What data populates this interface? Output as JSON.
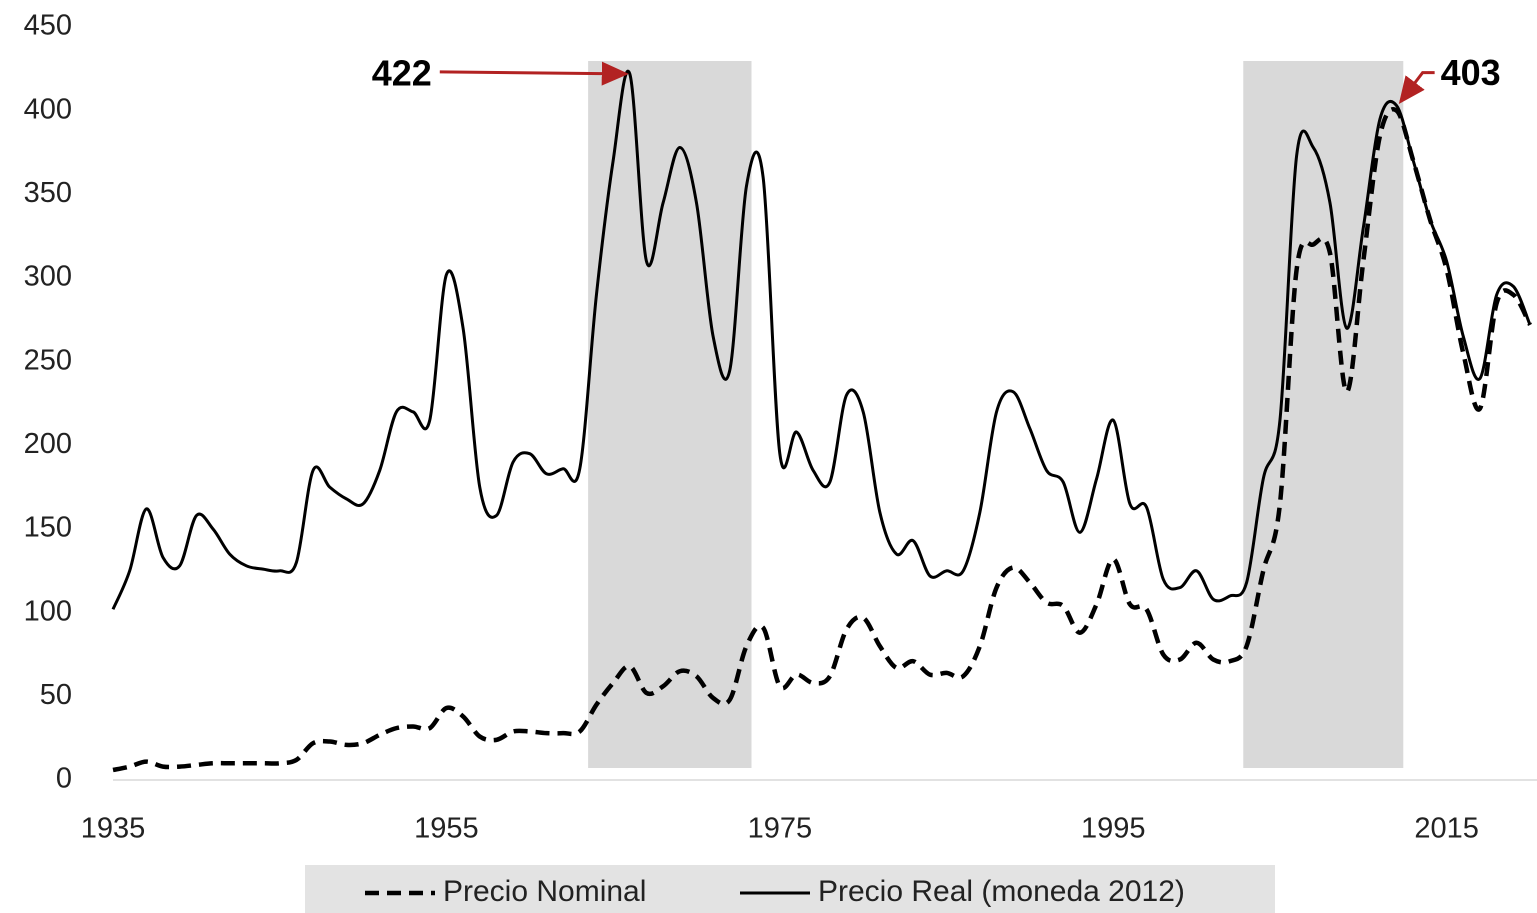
{
  "chart_data": {
    "type": "line",
    "x": [
      1935,
      1936,
      1937,
      1938,
      1939,
      1940,
      1941,
      1942,
      1943,
      1944,
      1945,
      1946,
      1947,
      1948,
      1949,
      1950,
      1951,
      1952,
      1953,
      1954,
      1955,
      1956,
      1957,
      1958,
      1959,
      1960,
      1961,
      1962,
      1963,
      1964,
      1965,
      1966,
      1967,
      1968,
      1969,
      1970,
      1971,
      1972,
      1973,
      1974,
      1975,
      1976,
      1977,
      1978,
      1979,
      1980,
      1981,
      1982,
      1983,
      1984,
      1985,
      1986,
      1987,
      1988,
      1989,
      1990,
      1991,
      1992,
      1993,
      1994,
      1995,
      1996,
      1997,
      1998,
      1999,
      2000,
      2001,
      2002,
      2003,
      2004,
      2005,
      2006,
      2007,
      2008,
      2009,
      2010,
      2011,
      2012,
      2013,
      2014,
      2015,
      2016,
      2017,
      2018,
      2019,
      2020
    ],
    "series": [
      {
        "name": "Precio Nominal",
        "color": "#000000",
        "dash": true,
        "values": [
          6,
          8,
          11,
          8,
          8,
          9,
          10,
          10,
          10,
          10,
          10,
          12,
          22,
          23,
          21,
          22,
          27,
          31,
          32,
          31,
          43,
          38,
          26,
          24,
          29,
          29,
          28,
          28,
          29,
          45,
          58,
          68,
          52,
          56,
          65,
          62,
          49,
          48,
          80,
          91,
          56,
          63,
          58,
          62,
          90,
          97,
          80,
          67,
          71,
          63,
          64,
          62,
          80,
          115,
          127,
          118,
          106,
          104,
          88,
          105,
          132,
          105,
          102,
          75,
          72,
          82,
          72,
          71,
          80,
          125,
          165,
          305,
          320,
          315,
          232,
          310,
          385,
          400,
          370,
          335,
          305,
          255,
          222,
          285,
          290,
          272
        ]
      },
      {
        "name": "Precio Real (moneda 2012)",
        "color": "#000000",
        "dash": false,
        "values": [
          102,
          125,
          162,
          133,
          128,
          158,
          150,
          135,
          128,
          126,
          125,
          130,
          185,
          175,
          168,
          165,
          185,
          220,
          220,
          215,
          302,
          270,
          175,
          158,
          190,
          195,
          183,
          186,
          186,
          290,
          370,
          422,
          310,
          345,
          378,
          345,
          265,
          245,
          355,
          360,
          195,
          208,
          185,
          178,
          230,
          220,
          160,
          135,
          143,
          122,
          125,
          125,
          160,
          220,
          232,
          210,
          185,
          178,
          148,
          180,
          215,
          165,
          163,
          120,
          115,
          125,
          108,
          110,
          118,
          180,
          215,
          373,
          378,
          345,
          270,
          330,
          395,
          403,
          370,
          335,
          310,
          265,
          240,
          290,
          295,
          272
        ]
      }
    ],
    "xlim": [
      1935,
      2020
    ],
    "xticks": [
      1935,
      1955,
      1975,
      1995,
      2015
    ],
    "ylim": [
      0,
      450
    ],
    "yticks": [
      0,
      50,
      100,
      150,
      200,
      250,
      300,
      350,
      400,
      450
    ],
    "shaded_regions": [
      [
        1963.5,
        1973.3
      ],
      [
        2002.8,
        2012.4
      ]
    ],
    "annotations": [
      {
        "label": "422",
        "x": 1966,
        "y": 422
      },
      {
        "label": "403",
        "x": 2012,
        "y": 403
      }
    ],
    "legend": "bottom"
  }
}
